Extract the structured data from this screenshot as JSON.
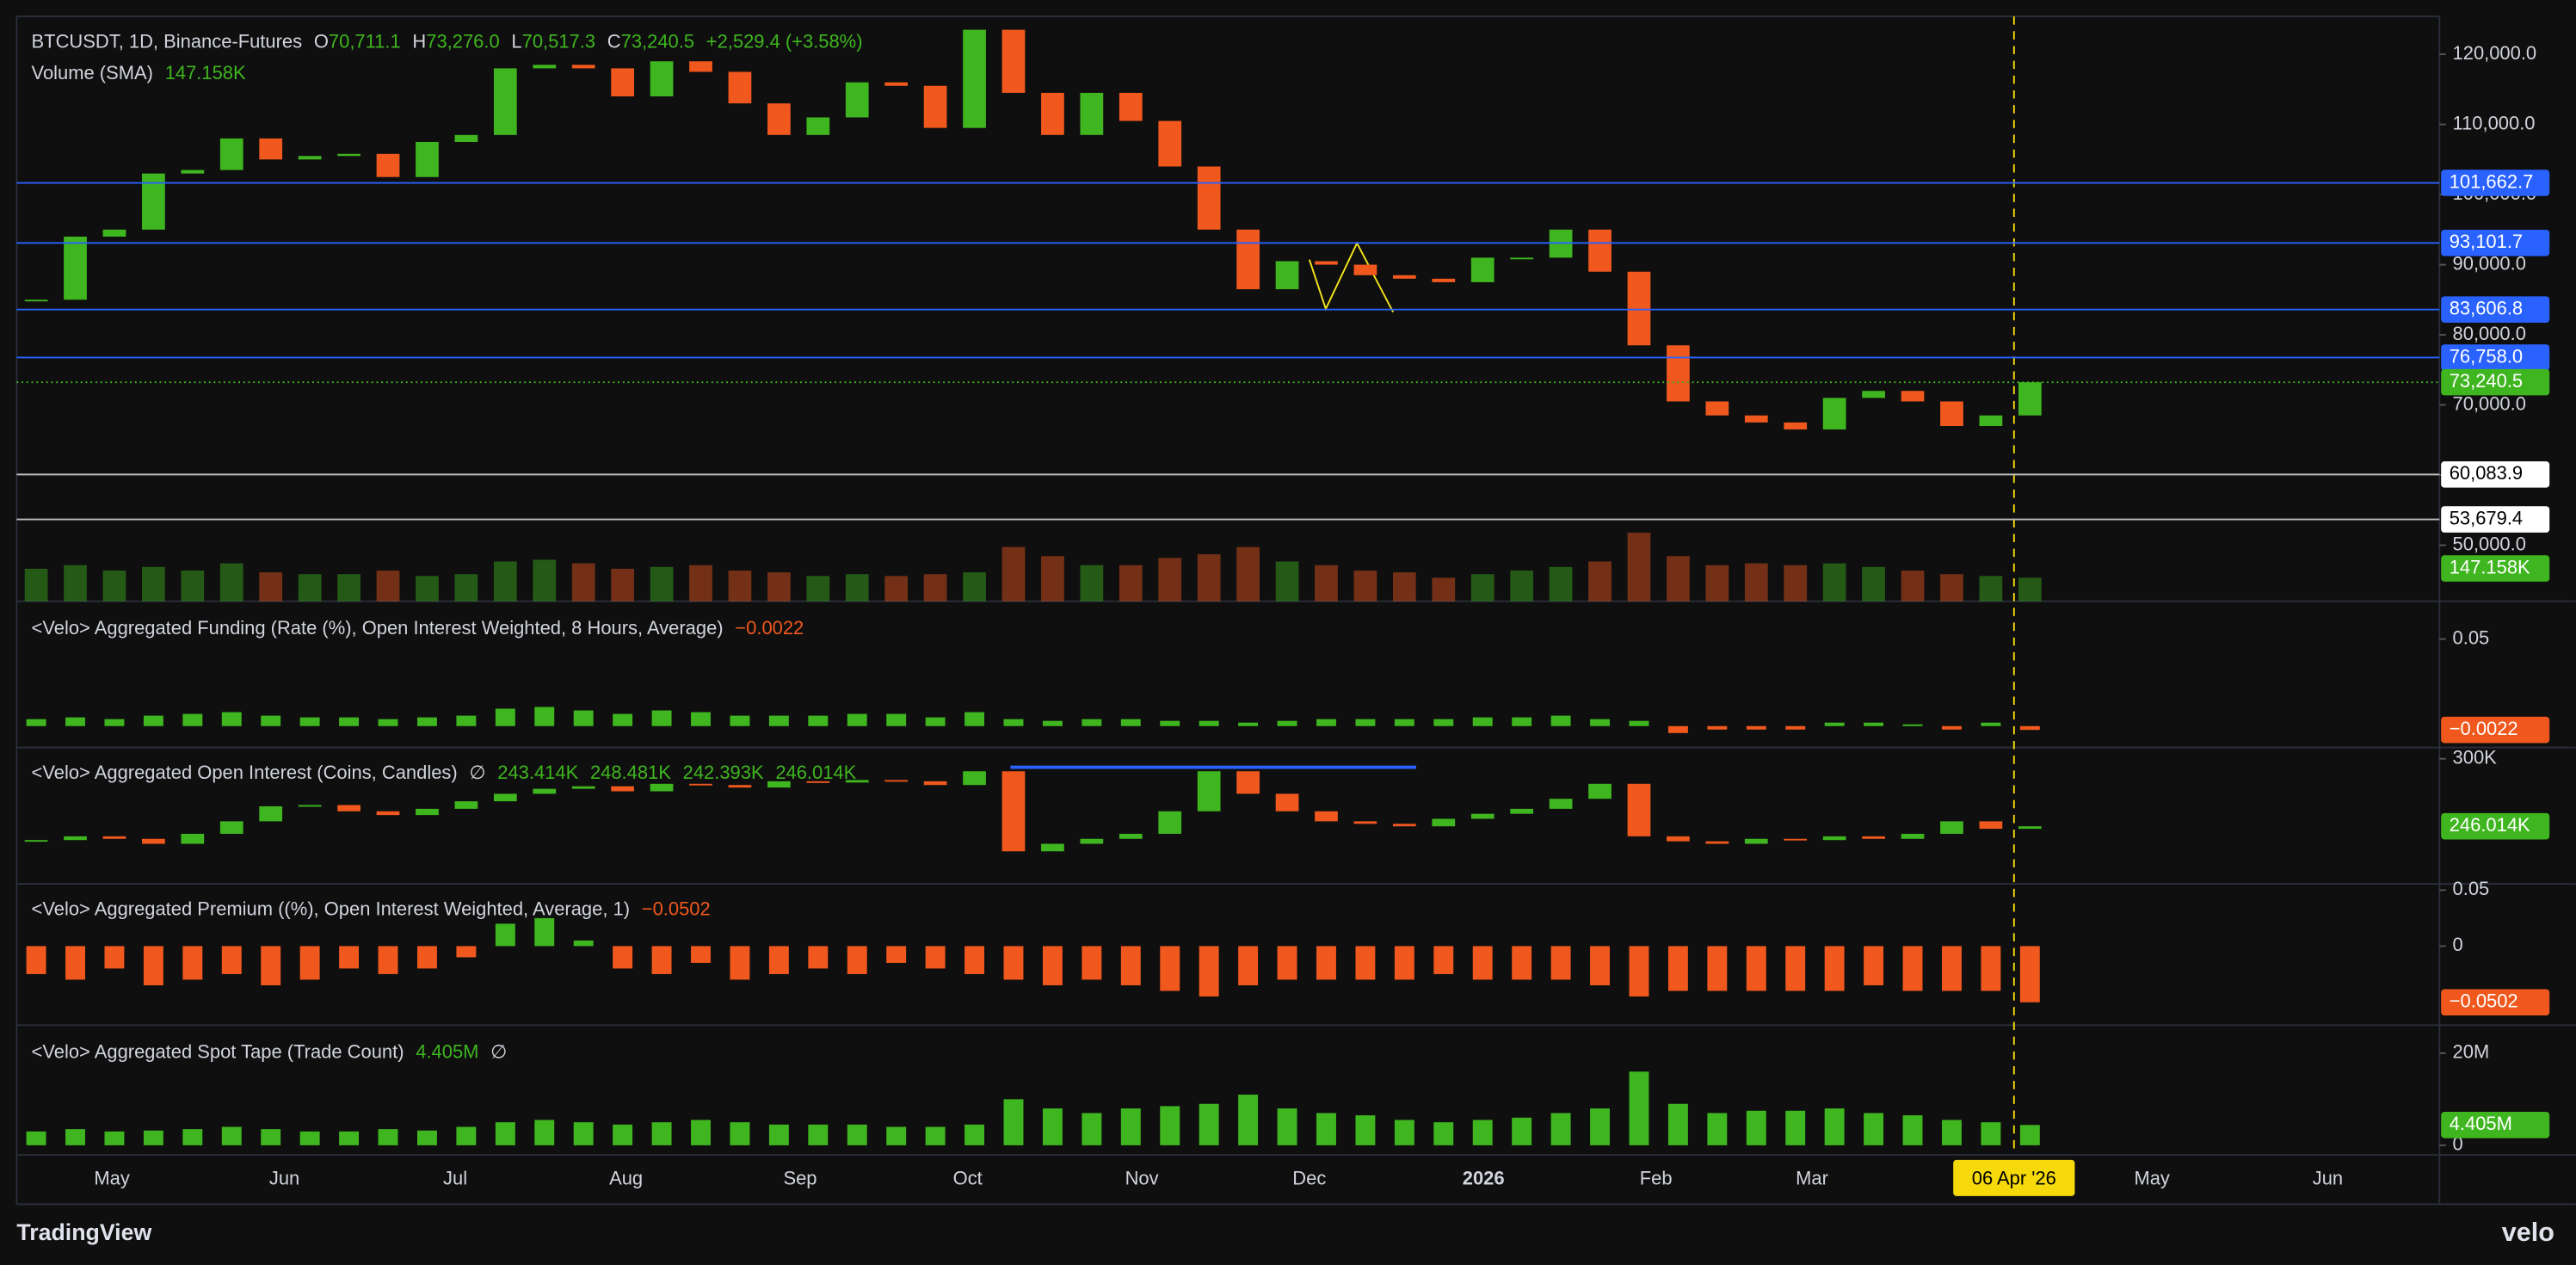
{
  "header": {
    "symbol": "BTCUSDT, 1D, Binance-Futures",
    "o_label": "O",
    "o": "70,711.1",
    "h_label": "H",
    "h": "73,276.0",
    "l_label": "L",
    "l": "70,517.3",
    "c_label": "C",
    "change": "+2,529.4 (+3.58%)",
    "volume_title": "Volume (SMA)"
  },
  "chart_data": [
    {
      "type": "candlestick",
      "up_color": "#3fb61f",
      "down_color": "#f0581e",
      "close": [
        85000,
        94000,
        95000,
        103000,
        103500,
        108000,
        105000,
        105500,
        105800,
        102500,
        107500,
        108500,
        118000,
        118500,
        118000,
        114000,
        119000,
        117500,
        113000,
        108500,
        111000,
        116000,
        115500,
        109500,
        123500,
        114500,
        108500,
        114500,
        110500,
        104000,
        95000,
        86500,
        90500,
        90000,
        88500,
        88000,
        87500,
        91000,
        91000,
        95000,
        89000,
        78500,
        70500,
        68500,
        67500,
        66500,
        71000,
        72000,
        70500,
        67000,
        68500,
        73240.5
      ],
      "ylim": [
        42000,
        125400
      ],
      "yticks": [
        {
          "value": 50000,
          "label": "50,000.0"
        },
        {
          "value": 60000,
          "label": "60,000.0"
        },
        {
          "value": 70000,
          "label": "70,000.0"
        },
        {
          "value": 80000,
          "label": "80,000.0"
        },
        {
          "value": 90000,
          "label": "90,000.0"
        },
        {
          "value": 100000,
          "label": "100,000.0"
        },
        {
          "value": 110000,
          "label": "110,000.0"
        },
        {
          "value": 120000,
          "label": "120,000.0"
        }
      ],
      "levels": [
        {
          "value": 101662.7,
          "label": "101,662.7",
          "color": "#2962ff"
        },
        {
          "value": 93101.7,
          "label": "93,101.7",
          "color": "#2962ff"
        },
        {
          "value": 83606.8,
          "label": "83,606.8",
          "color": "#2962ff"
        },
        {
          "value": 76758.0,
          "label": "76,758.0",
          "color": "#2962ff"
        },
        {
          "value": 60083.9,
          "label": "60,083.9",
          "color": "#ffffff"
        },
        {
          "value": 53679.4,
          "label": "53,679.4",
          "color": "#ffffff"
        }
      ],
      "last": {
        "value": 73240.5,
        "label": "73,240.5"
      },
      "volume": [
        180,
        200,
        170,
        190,
        170,
        210,
        160,
        150,
        150,
        170,
        140,
        150,
        220,
        230,
        210,
        180,
        190,
        200,
        170,
        160,
        140,
        150,
        140,
        150,
        160,
        300,
        250,
        200,
        200,
        240,
        260,
        300,
        220,
        200,
        170,
        160,
        130,
        150,
        170,
        190,
        220,
        380,
        250,
        200,
        210,
        200,
        210,
        190,
        170,
        150,
        140,
        130
      ],
      "volume_sma": {
        "value": 147.158,
        "label": "147.158K"
      }
    },
    {
      "type": "bar",
      "title": "<Velo> Aggregated Funding (Rate (%), Open Interest Weighted, 8 Hours, Average)",
      "up_color": "#3fb61f",
      "down_color": "#f0581e",
      "values": [
        0.004,
        0.005,
        0.004,
        0.006,
        0.007,
        0.008,
        0.006,
        0.005,
        0.005,
        0.004,
        0.005,
        0.006,
        0.01,
        0.011,
        0.009,
        0.007,
        0.009,
        0.008,
        0.006,
        0.006,
        0.006,
        0.007,
        0.007,
        0.005,
        0.008,
        0.004,
        0.003,
        0.004,
        0.004,
        0.003,
        0.003,
        0.002,
        0.003,
        0.004,
        0.004,
        0.004,
        0.004,
        0.005,
        0.005,
        0.006,
        0.004,
        0.003,
        -0.004,
        -0.002,
        -0.002,
        -0.002,
        0.002,
        0.002,
        0.001,
        -0.002,
        0.002,
        -0.0022
      ],
      "ylim": [
        -0.0123,
        0.0717
      ],
      "yticks": [
        0.05
      ],
      "last": {
        "value": -0.0022,
        "label": "−0.0022"
      }
    },
    {
      "type": "candlestick",
      "title": "<Velo> Aggregated Open Interest (Coins, Candles)",
      "symbol": "∅",
      "ohlc_labels": [
        "243.414K",
        "248.481K",
        "242.393K"
      ],
      "up_color": "#3fb61f",
      "down_color": "#f0581e",
      "close": [
        235,
        238,
        236,
        232,
        240,
        250,
        262,
        263,
        258,
        255,
        260,
        266,
        272,
        276,
        278,
        274,
        280,
        279,
        277,
        282,
        281,
        283,
        282,
        279,
        290,
        226,
        232,
        236,
        240,
        258,
        290,
        272,
        258,
        250,
        248,
        246,
        252,
        256,
        260,
        268,
        280,
        238,
        234,
        232,
        236,
        235,
        238,
        236,
        240,
        250,
        244,
        246.014
      ],
      "ylim": [
        200,
        309
      ],
      "yticks": [
        {
          "value": 300,
          "label": "300K"
        }
      ],
      "last": {
        "value": 246.014,
        "label": "246.014K"
      }
    },
    {
      "type": "bar",
      "title": "<Velo> Aggregated Premium ((%), Open Interest Weighted, Average, 1)",
      "up_color": "#3fb61f",
      "down_color": "#f0581e",
      "values": [
        -0.025,
        -0.03,
        -0.02,
        -0.035,
        -0.03,
        -0.025,
        -0.035,
        -0.03,
        -0.02,
        -0.025,
        -0.02,
        -0.01,
        0.02,
        0.025,
        0.005,
        -0.02,
        -0.025,
        -0.015,
        -0.03,
        -0.025,
        -0.02,
        -0.025,
        -0.015,
        -0.02,
        -0.025,
        -0.03,
        -0.035,
        -0.03,
        -0.035,
        -0.04,
        -0.045,
        -0.035,
        -0.03,
        -0.03,
        -0.03,
        -0.03,
        -0.025,
        -0.03,
        -0.03,
        -0.03,
        -0.035,
        -0.045,
        -0.04,
        -0.04,
        -0.04,
        -0.04,
        -0.04,
        -0.035,
        -0.04,
        -0.04,
        -0.04,
        -0.0502
      ],
      "ylim": [
        -0.0706,
        0.0556
      ],
      "yticks": [
        0.05,
        0
      ],
      "last": {
        "value": -0.0502,
        "label": "−0.0502"
      }
    },
    {
      "type": "bar",
      "title": "<Velo> Aggregated Spot Tape (Trade Count)",
      "symbol": "∅",
      "up_color": "#3fb61f",
      "down_color": "#3fb61f",
      "values": [
        3,
        3.5,
        3,
        3.2,
        3.5,
        4,
        3.5,
        3,
        3,
        3.5,
        3.2,
        4,
        5,
        5.5,
        5,
        4.5,
        5,
        5.5,
        5,
        4.5,
        4.5,
        4.5,
        4,
        4,
        4.5,
        10,
        8,
        7,
        8,
        8.5,
        9,
        11,
        8,
        7,
        6.5,
        5.5,
        5,
        5.5,
        6,
        7,
        8,
        16,
        9,
        7,
        7.5,
        7.5,
        8,
        7,
        6.5,
        5.5,
        5,
        4.405
      ],
      "ylim": [
        -2.1,
        26.1
      ],
      "yticks": [
        {
          "value": 20,
          "label": "20M"
        },
        0
      ],
      "last": {
        "value": 4.405,
        "label": "4.405M"
      }
    }
  ],
  "time_axis": {
    "labels": [
      "May",
      "Jun",
      "Jul",
      "Aug",
      "Sep",
      "Oct",
      "Nov",
      "Dec",
      "2026",
      "Feb",
      "Mar",
      "May",
      "Jun"
    ],
    "crosshair": "06 Apr '26"
  },
  "footer": {
    "brand": "TradingView",
    "velo": "velo"
  }
}
